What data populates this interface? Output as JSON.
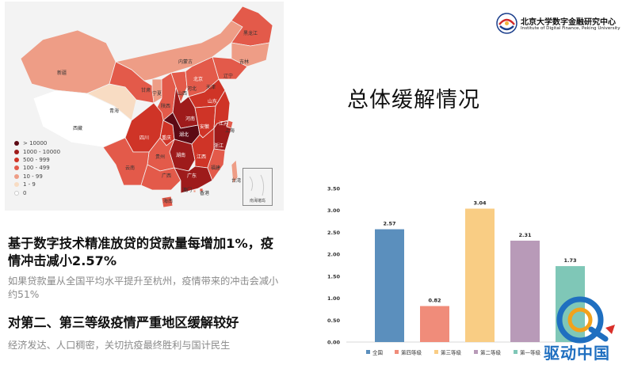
{
  "logo": {
    "name": "北京大学数字金融研究中心",
    "subtitle": "Institute of Digital Finance, Peking University"
  },
  "main_title": "总体缓解情况",
  "findings": [
    {
      "headline": "基于数字技术精准放贷的贷款量每增加1%，疫情冲击减小2.57%",
      "detail": "如果贷款量从全国平均水平提升至杭州，疫情带来的冲击会减小约51%"
    },
    {
      "headline": "对第二、第三等级疫情严重地区缓解较好",
      "detail": "经济发达、人口稠密，关切抗疫最终胜利与国计民生"
    }
  ],
  "map": {
    "legend": [
      {
        "label": "> 10000",
        "color": "#5c0a14"
      },
      {
        "label": "1000 - 10000",
        "color": "#9e1b1b"
      },
      {
        "label": "500 - 999",
        "color": "#cf3427"
      },
      {
        "label": "100 - 499",
        "color": "#e35a4a"
      },
      {
        "label": "10 - 99",
        "color": "#ee9d86"
      },
      {
        "label": "1 - 9",
        "color": "#f8dcc3"
      },
      {
        "label": "0",
        "color": "#ffffff"
      }
    ],
    "provinces": [
      {
        "name": "黑龙江",
        "color": "#e35a4a"
      },
      {
        "name": "吉林",
        "color": "#ee9d86"
      },
      {
        "name": "辽宁",
        "color": "#e35a4a"
      },
      {
        "name": "内蒙古",
        "color": "#ee9d86"
      },
      {
        "name": "新疆",
        "color": "#ee9d86"
      },
      {
        "name": "西藏",
        "color": "#ffffff"
      },
      {
        "name": "青海",
        "color": "#f8dcc3"
      },
      {
        "name": "甘肃",
        "color": "#e35a4a"
      },
      {
        "name": "宁夏",
        "color": "#ee9d86"
      },
      {
        "name": "陕西",
        "color": "#e35a4a"
      },
      {
        "name": "山西",
        "color": "#e35a4a"
      },
      {
        "name": "北京",
        "color": "#cf3427"
      },
      {
        "name": "天津",
        "color": "#e35a4a"
      },
      {
        "name": "河北",
        "color": "#e35a4a"
      },
      {
        "name": "山东",
        "color": "#cf3427"
      },
      {
        "name": "河南",
        "color": "#9e1b1b"
      },
      {
        "name": "四川",
        "color": "#cf3427"
      },
      {
        "name": "重庆",
        "color": "#cf3427"
      },
      {
        "name": "湖北",
        "color": "#5c0a14"
      },
      {
        "name": "安徽",
        "color": "#cf3427"
      },
      {
        "name": "江苏",
        "color": "#cf3427"
      },
      {
        "name": "上海",
        "color": "#e35a4a"
      },
      {
        "name": "浙江",
        "color": "#9e1b1b"
      },
      {
        "name": "湖南",
        "color": "#9e1b1b"
      },
      {
        "name": "江西",
        "color": "#cf3427"
      },
      {
        "name": "贵州",
        "color": "#e35a4a"
      },
      {
        "name": "云南",
        "color": "#e35a4a"
      },
      {
        "name": "广西",
        "color": "#e35a4a"
      },
      {
        "name": "广东",
        "color": "#9e1b1b"
      },
      {
        "name": "福建",
        "color": "#e35a4a"
      },
      {
        "name": "海南",
        "color": "#e35a4a"
      },
      {
        "name": "台湾",
        "color": "#ee9d86"
      },
      {
        "name": "香港",
        "color": "#e35a4a"
      },
      {
        "name": "澳门",
        "color": "#ee9d86"
      }
    ],
    "inset_label": "南海诸岛"
  },
  "chart_data": {
    "type": "bar",
    "categories": [
      "全国",
      "第四等级",
      "第三等级",
      "第二等级",
      "第一等级"
    ],
    "values": [
      2.57,
      0.82,
      3.04,
      2.31,
      1.73
    ],
    "colors": [
      "#5b8fbd",
      "#f08c7a",
      "#f9cd84",
      "#b89ab8",
      "#7fc7b7"
    ],
    "y_ticks": [
      "0.00",
      "0.50",
      "1.00",
      "1.50",
      "2.00",
      "2.50",
      "3.00",
      "3.50"
    ],
    "ylim": [
      0,
      3.5
    ],
    "data_labels": [
      "2.57",
      "0.82",
      "3.04",
      "2.31",
      "1.73"
    ],
    "legend_position": "bottom",
    "grid": false
  },
  "watermark": {
    "text": "驱动中国",
    "accent_color": "#1f6fc0"
  }
}
